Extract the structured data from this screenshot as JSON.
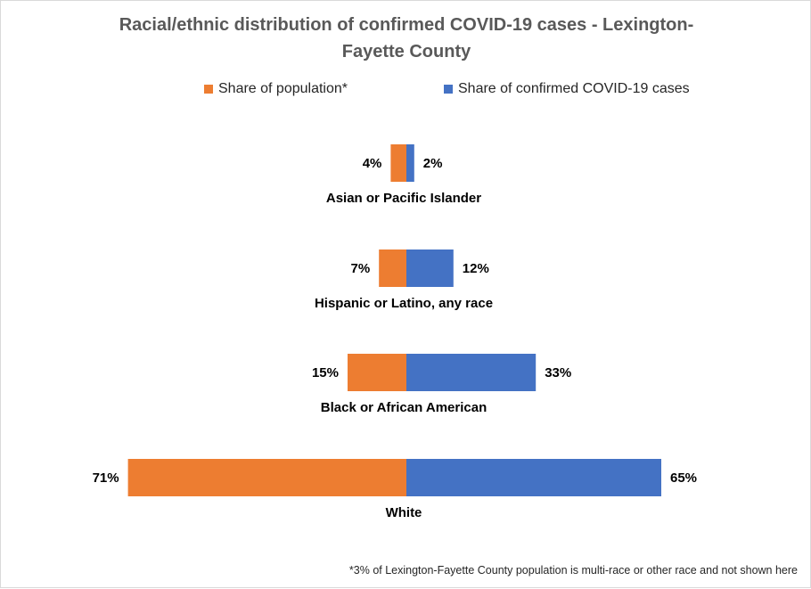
{
  "chart_data": {
    "type": "bar",
    "orientation": "horizontal-butterfly",
    "title": "Racial/ethnic distribution of confirmed COVID-19 cases -  Lexington-Fayette County",
    "categories": [
      "Asian or Pacific Islander",
      "Hispanic or Latino, any race",
      "Black or African American",
      "White"
    ],
    "series": [
      {
        "name": "Share of population*",
        "values": [
          4,
          7,
          15,
          71
        ],
        "labels": [
          "4%",
          "7%",
          "15%",
          "71%"
        ],
        "color": "#ED7D31"
      },
      {
        "name": "Share of confirmed COVID-19 cases",
        "values": [
          2,
          12,
          33,
          65
        ],
        "labels": [
          "2%",
          "12%",
          "33%",
          "65%"
        ],
        "color": "#4472C4"
      }
    ],
    "legend_position": "top",
    "grid": false,
    "footnote": "*3% of Lexington-Fayette County population is multi-race or other race and not shown here"
  }
}
